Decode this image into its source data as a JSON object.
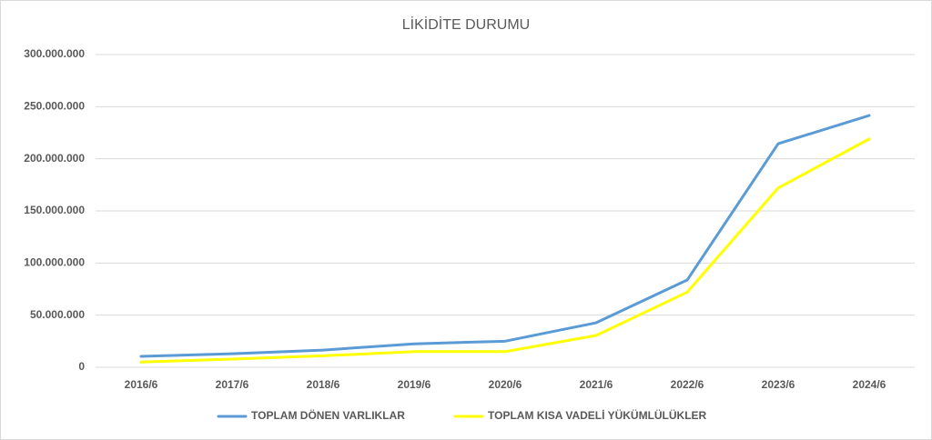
{
  "chart_data": {
    "type": "line",
    "title": "LİKİDİTE DURUMU",
    "categories": [
      "2016/6",
      "2017/6",
      "2018/6",
      "2019/6",
      "2020/6",
      "2021/6",
      "2022/6",
      "2023/6",
      "2024/6"
    ],
    "series": [
      {
        "name": "TOPLAM DÖNEN VARLIKLAR",
        "color": "#5b9bd5",
        "values": [
          10500000,
          13000000,
          16500000,
          22500000,
          25000000,
          42700000,
          83700000,
          214500000,
          241500000
        ]
      },
      {
        "name": "TOPLAM KISA VADELİ YÜKÜMLÜLÜKLER",
        "color": "#ffff00",
        "values": [
          5000000,
          7800000,
          11000000,
          15000000,
          15000000,
          30500000,
          72000000,
          172000000,
          219000000
        ]
      }
    ],
    "ylim": [
      0,
      300000000
    ],
    "yticks": [
      0,
      {
        "value": 50000000,
        "label": "50.000.000"
      },
      {
        "value": 100000000,
        "label": "100.000.000"
      },
      {
        "value": 150000000,
        "label": "150.000.000"
      },
      {
        "value": 200000000,
        "label": "200.000.000"
      },
      {
        "value": 250000000,
        "label": "250.000.000"
      },
      {
        "value": 300000000,
        "label": "300.000.000"
      }
    ],
    "grid": true,
    "legend": "bottom"
  }
}
